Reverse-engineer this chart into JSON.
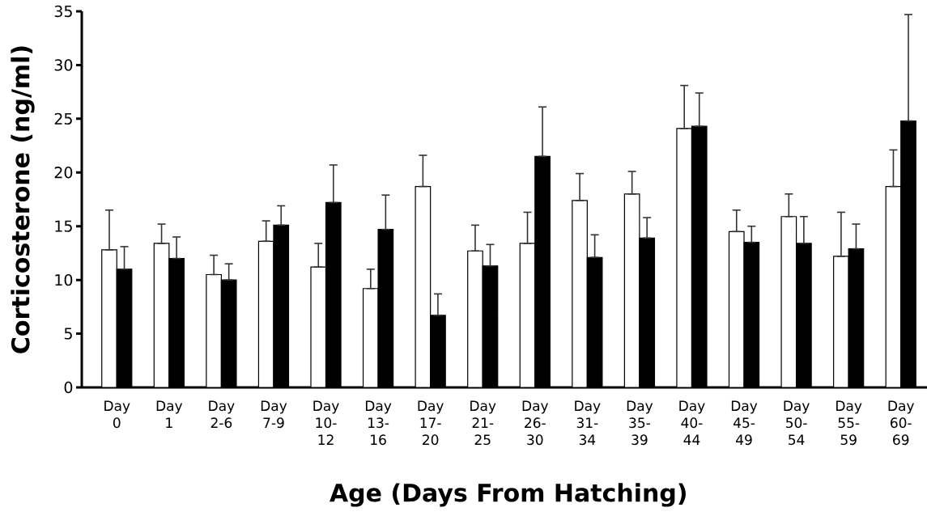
{
  "chart_data": {
    "type": "bar",
    "xlabel": "Age (Days From Hatching)",
    "ylabel": "Corticosterone (ng/ml)",
    "categories": [
      "Day 0",
      "Day 1",
      "Day 2-6",
      "Day 7-9",
      "Day 10-12",
      "Day 13-16",
      "Day 17-20",
      "Day 21-25",
      "Day 26-30",
      "Day 31-34",
      "Day 35-39",
      "Day 40-44",
      "Day 45-49",
      "Day 50-54",
      "Day 55-59",
      "Day 60-69"
    ],
    "series": [
      {
        "color": "#ffffff",
        "values": [
          12.8,
          13.4,
          10.5,
          13.6,
          11.2,
          9.2,
          18.7,
          12.7,
          13.4,
          17.4,
          18.0,
          24.1,
          14.5,
          15.9,
          12.2,
          18.7
        ],
        "errors": [
          [
            12.8,
            16.5
          ],
          [
            13.4,
            15.2
          ],
          [
            10.5,
            12.3
          ],
          [
            13.6,
            15.5
          ],
          [
            11.2,
            13.4
          ],
          [
            9.2,
            11.0
          ],
          [
            18.7,
            21.6
          ],
          [
            12.7,
            15.1
          ],
          [
            13.4,
            16.3
          ],
          [
            17.4,
            19.9
          ],
          [
            18.0,
            20.1
          ],
          [
            24.1,
            28.1
          ],
          [
            14.5,
            16.5
          ],
          [
            15.9,
            18.0
          ],
          [
            12.2,
            16.3
          ],
          [
            18.7,
            22.1
          ]
        ]
      },
      {
        "color": "#000000",
        "values": [
          11.0,
          12.0,
          10.0,
          15.1,
          17.2,
          14.7,
          6.7,
          11.3,
          21.5,
          12.1,
          13.9,
          24.3,
          13.5,
          13.4,
          12.9,
          24.8
        ],
        "errors": [
          [
            11.0,
            13.1
          ],
          [
            12.0,
            14.0
          ],
          [
            10.0,
            11.5
          ],
          [
            15.1,
            16.9
          ],
          [
            17.2,
            20.7
          ],
          [
            14.7,
            17.9
          ],
          [
            6.7,
            8.7
          ],
          [
            11.3,
            13.3
          ],
          [
            21.5,
            26.1
          ],
          [
            12.1,
            14.2
          ],
          [
            13.9,
            15.8
          ],
          [
            24.3,
            27.4
          ],
          [
            13.5,
            15.0
          ],
          [
            13.4,
            15.9
          ],
          [
            12.9,
            15.2
          ],
          [
            24.8,
            34.7
          ]
        ]
      }
    ],
    "ylim": [
      0,
      35
    ],
    "yticks": [
      0,
      5,
      10,
      15,
      20,
      25,
      30,
      35
    ]
  }
}
